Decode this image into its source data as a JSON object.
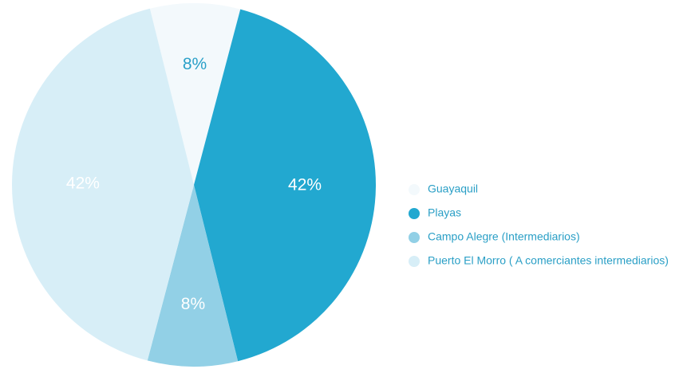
{
  "chart_data": {
    "type": "pie",
    "categories": [
      "Guayaquil",
      "Playas",
      "Campo Alegre (Intermediarios)",
      "Puerto El Morro ( A comerciantes intermediarios)"
    ],
    "values": [
      8,
      42,
      8,
      42
    ],
    "value_labels": [
      "8%",
      "42%",
      "8%",
      "42%"
    ],
    "colors": [
      "#f3f9fc",
      "#22a8d0",
      "#92d0e6",
      "#d7eef7"
    ],
    "label_colors": [
      "#2aa0c8",
      "#ffffff",
      "#ffffff",
      "#ffffff"
    ],
    "legend": "right"
  }
}
